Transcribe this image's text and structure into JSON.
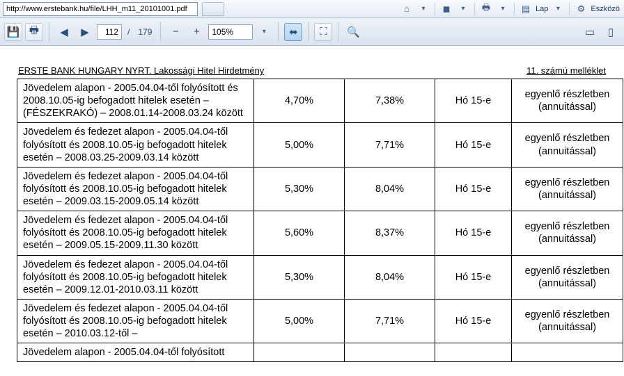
{
  "browser": {
    "url": "http://www.erstebank.hu/file/LHH_m11_20101001.pdf",
    "menu_lap": "Lap",
    "menu_eszkoz": "Eszközö"
  },
  "pdf": {
    "page_current": "112",
    "page_sep": "/",
    "page_total": "179",
    "zoom": "105%"
  },
  "doc": {
    "title_left": "ERSTE BANK HUNGARY NYRT. Lakossági Hitel Hirdetmény",
    "title_right": "11. számú melléklet"
  },
  "table": {
    "rows": [
      {
        "desc": "Jövedelem alapon - 2005.04.04-től folyósított és 2008.10.05-ig befogadott hitelek esetén – (FÉSZEKRAKÓ) – 2008.01.14-2008.03.24 között",
        "c1": "4,70%",
        "c2": "7,38%",
        "c3": "Hó 15-e",
        "c4": "egyenlő részletben (annuitással)"
      },
      {
        "desc": "Jövedelem és fedezet alapon - 2005.04.04-től folyósított és 2008.10.05-ig befogadott hitelek esetén – 2008.03.25-2009.03.14 között",
        "c1": "5,00%",
        "c2": "7,71%",
        "c3": "Hó 15-e",
        "c4": "egyenlő részletben (annuitással)"
      },
      {
        "desc": "Jövedelem és fedezet alapon - 2005.04.04-től folyósított és 2008.10.05-ig befogadott hitelek esetén – 2009.03.15-2009.05.14 között",
        "c1": "5,30%",
        "c2": "8,04%",
        "c3": "Hó 15-e",
        "c4": "egyenlő részletben (annuitással)"
      },
      {
        "desc": "Jövedelem és fedezet alapon - 2005.04.04-től folyósított és 2008.10.05-ig befogadott hitelek esetén – 2009.05.15-2009.11.30 között",
        "c1": "5,60%",
        "c2": "8,37%",
        "c3": "Hó 15-e",
        "c4": "egyenlő részletben (annuitással)"
      },
      {
        "desc": "Jövedelem és fedezet alapon - 2005.04.04-től folyósított és 2008.10.05-ig befogadott hitelek esetén – 2009.12.01-2010.03.11 között",
        "c1": "5,30%",
        "c2": "8,04%",
        "c3": "Hó 15-e",
        "c4": "egyenlő részletben (annuitással)"
      },
      {
        "desc": "Jövedelem és fedezet alapon - 2005.04.04-től folyósított és 2008.10.05-ig befogadott hitelek esetén – 2010.03.12-től –",
        "c1": "5,00%",
        "c2": "7,71%",
        "c3": "Hó 15-e",
        "c4": "egyenlő részletben (annuitással)"
      }
    ],
    "cut_row": "Jövedelem alapon - 2005.04.04-től folyósított"
  },
  "col_widths": [
    "340px",
    "130px",
    "130px",
    "110px",
    "160px"
  ]
}
